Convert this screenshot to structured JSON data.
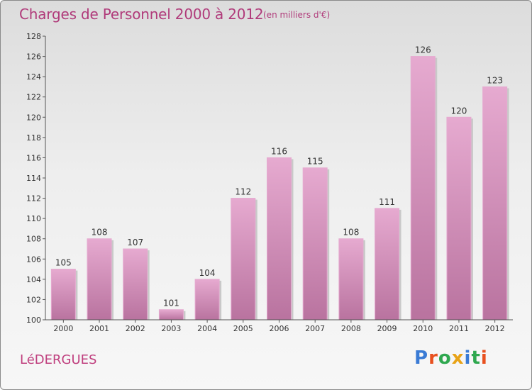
{
  "title": "Charges de Personnel 2000 à 2012",
  "subtitle": "(en milliers d'€)",
  "commune": "LéDERGUES",
  "logo": {
    "letters": [
      "P",
      "r",
      "o",
      "x",
      "i",
      "t",
      "i"
    ],
    "colors": [
      "#3a7bd5",
      "#e8501f",
      "#2fa84f",
      "#e8a317",
      "#3a7bd5",
      "#2fa84f",
      "#e8501f"
    ]
  },
  "colors": {
    "bar_light": "#e6aad0",
    "bar_dark": "#b9739f",
    "axis": "#555555",
    "title": "#b03a7a"
  },
  "chart_data": {
    "type": "bar",
    "title": "Charges de Personnel 2000 à 2012",
    "subtitle": "(en milliers d'€)",
    "categories": [
      "2000",
      "2001",
      "2002",
      "2003",
      "2004",
      "2005",
      "2006",
      "2007",
      "2008",
      "2009",
      "2010",
      "2011",
      "2012"
    ],
    "values": [
      105,
      108,
      107,
      101,
      104,
      112,
      116,
      115,
      108,
      111,
      126,
      120,
      123
    ],
    "ylim": [
      100,
      128
    ],
    "yticks": [
      100,
      102,
      104,
      106,
      108,
      110,
      112,
      114,
      116,
      118,
      120,
      122,
      124,
      126,
      128
    ],
    "grid": false,
    "legend": "none"
  }
}
